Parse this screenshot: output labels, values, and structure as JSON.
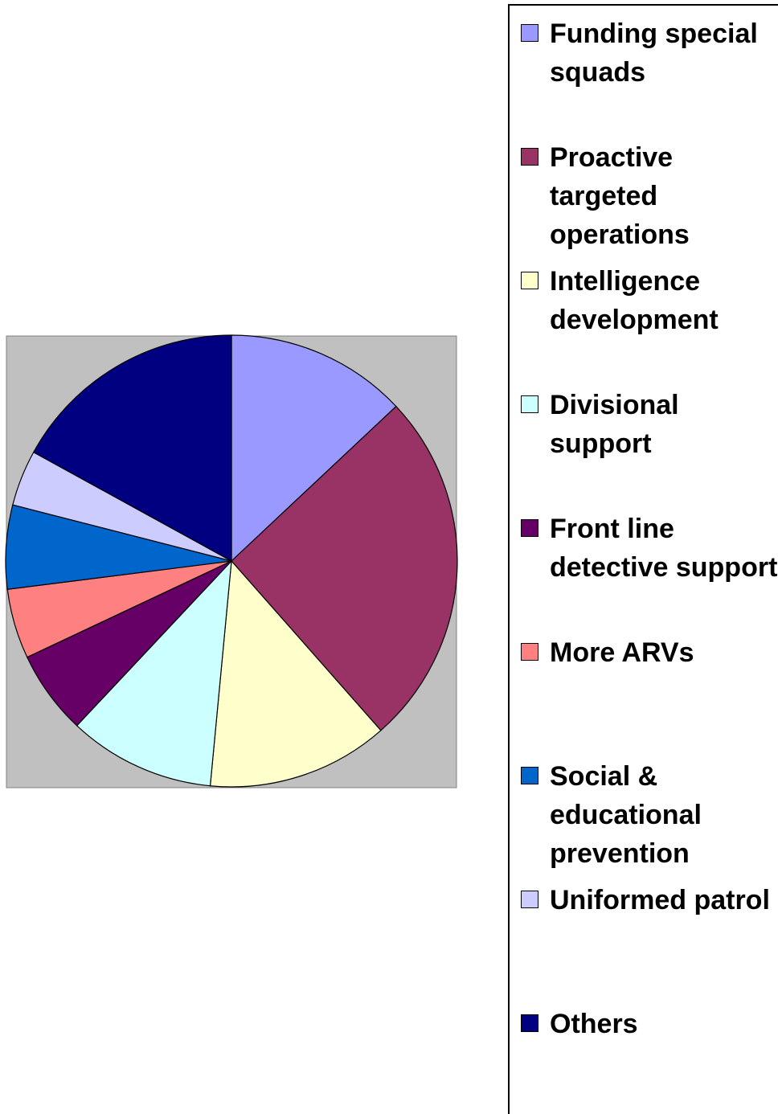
{
  "chart_data": {
    "type": "pie",
    "categories": [
      "Funding special squads",
      "Proactive targeted operations",
      "Intelligence development",
      "Divisional support",
      "Front line detective support",
      "More ARVs",
      "Social & educational prevention",
      "Uniformed patrol",
      "Others"
    ],
    "values": [
      13,
      25.5,
      13,
      10.5,
      6,
      5,
      6,
      4,
      17
    ],
    "colors": [
      "#9999ff",
      "#993366",
      "#ffffcc",
      "#ccffff",
      "#660066",
      "#ff8080",
      "#0066cc",
      "#ccccff",
      "#000080"
    ],
    "plot_background": "#c0c0c0"
  }
}
